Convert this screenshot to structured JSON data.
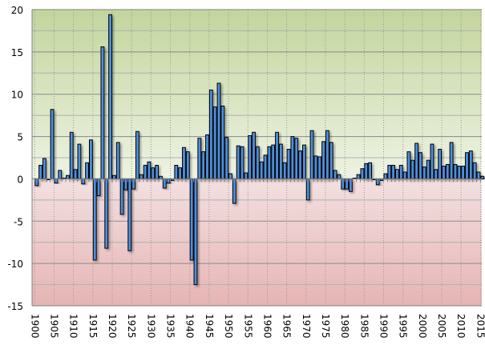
{
  "chart_data": {
    "type": "bar",
    "title": "",
    "xlabel": "",
    "ylabel": "",
    "ylim": [
      -15,
      20
    ],
    "yticks": [
      -15,
      -10,
      -5,
      0,
      5,
      10,
      15,
      20
    ],
    "ytick_labels": [
      "-15",
      "-10",
      "-5",
      "0",
      "5",
      "10",
      "15",
      "20"
    ],
    "xtick_labels": [
      "1900",
      "1905",
      "1910",
      "1915",
      "1920",
      "1925",
      "1930",
      "1935",
      "1940",
      "1945",
      "1950",
      "1955",
      "1960",
      "1965",
      "1970",
      "1975",
      "1980",
      "1985",
      "1990",
      "1995",
      "2000",
      "2005",
      "2010",
      "2015"
    ],
    "grid": true,
    "legend": "none",
    "colors": {
      "bar": "#4f8fdb",
      "bar_edge": "#000000",
      "positive_bg": "#c3d59d",
      "negative_bg": "#e6b4b4"
    },
    "x_start": 1900,
    "categories": [
      1900,
      1901,
      1902,
      1903,
      1904,
      1905,
      1906,
      1907,
      1908,
      1909,
      1910,
      1911,
      1912,
      1913,
      1914,
      1915,
      1916,
      1917,
      1918,
      1919,
      1920,
      1921,
      1922,
      1923,
      1924,
      1925,
      1926,
      1927,
      1928,
      1929,
      1930,
      1931,
      1932,
      1933,
      1934,
      1935,
      1936,
      1937,
      1938,
      1939,
      1940,
      1941,
      1942,
      1943,
      1944,
      1945,
      1946,
      1947,
      1948,
      1949,
      1950,
      1951,
      1952,
      1953,
      1954,
      1955,
      1956,
      1957,
      1958,
      1959,
      1960,
      1961,
      1962,
      1963,
      1964,
      1965,
      1966,
      1967,
      1968,
      1969,
      1970,
      1971,
      1972,
      1973,
      1974,
      1975,
      1976,
      1977,
      1978,
      1979,
      1980,
      1981,
      1982,
      1983,
      1984,
      1985,
      1986,
      1987,
      1988,
      1989,
      1990,
      1991,
      1992,
      1993,
      1994,
      1995,
      1996,
      1997,
      1998,
      1999,
      2000,
      2001,
      2002,
      2003,
      2004,
      2005,
      2006,
      2007,
      2008,
      2009,
      2010,
      2011,
      2012,
      2013,
      2014,
      2015
    ],
    "values": [
      -0.8,
      1.6,
      2.4,
      -0.1,
      8.2,
      -0.5,
      1.0,
      0.1,
      0.4,
      5.5,
      1.1,
      4.1,
      -0.6,
      1.9,
      4.6,
      -9.6,
      -2.0,
      15.6,
      -8.2,
      19.4,
      0.4,
      4.3,
      -4.2,
      -1.3,
      -8.5,
      -1.2,
      5.6,
      0.5,
      1.6,
      2.0,
      1.3,
      1.6,
      0.3,
      -1.1,
      -0.5,
      -0.2,
      1.6,
      1.3,
      3.7,
      3.2,
      -9.6,
      -12.5,
      4.8,
      3.2,
      5.2,
      10.5,
      8.5,
      11.3,
      8.6,
      4.9,
      0.6,
      -2.9,
      3.9,
      3.8,
      0.7,
      5.1,
      5.5,
      3.8,
      2.0,
      2.8,
      3.8,
      4.0,
      5.5,
      4.1,
      1.9,
      3.5,
      5.0,
      4.8,
      3.3,
      4.0,
      -2.5,
      5.7,
      2.7,
      2.6,
      4.4,
      5.7,
      4.3,
      1.0,
      0.5,
      -1.2,
      -1.2,
      -1.5,
      0.1,
      0.5,
      1.2,
      1.8,
      1.9,
      -0.1,
      -0.7,
      -0.2,
      0.6,
      1.6,
      1.6,
      1.1,
      1.6,
      0.8,
      3.2,
      2.2,
      4.2,
      3.1,
      1.4,
      2.2,
      4.1,
      1.1,
      3.5,
      1.5,
      1.7,
      4.3,
      1.7,
      1.5,
      1.5,
      3.1,
      3.3,
      1.9,
      0.8,
      0.3
    ]
  }
}
